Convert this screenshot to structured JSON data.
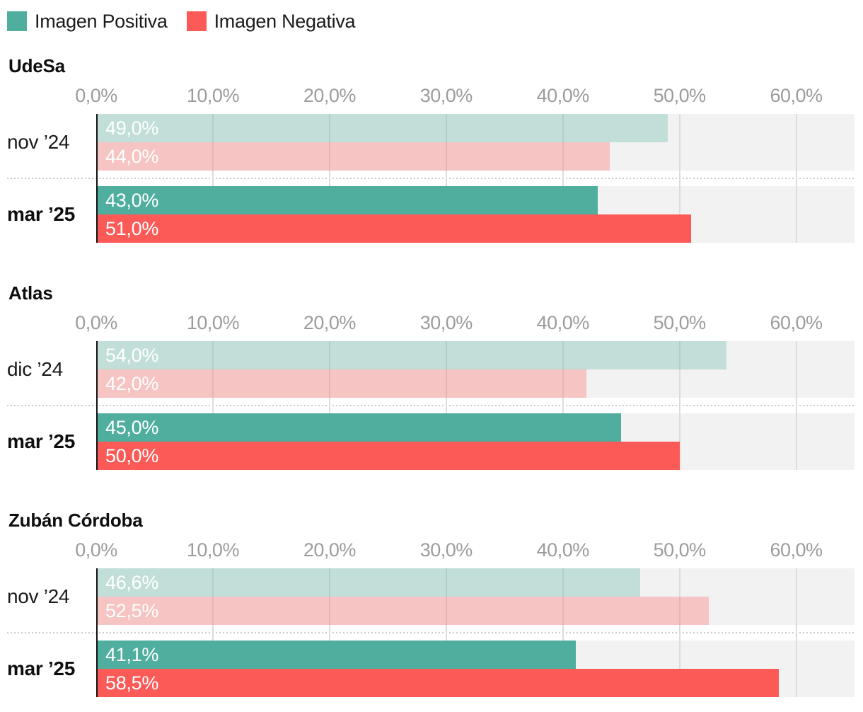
{
  "chart_data": {
    "type": "bar",
    "orientation": "horizontal",
    "unit": "percent",
    "xlim": [
      0,
      65
    ],
    "x_tick_values": [
      0,
      10,
      20,
      30,
      40,
      50,
      60
    ],
    "x_tick_labels": [
      "0,0%",
      "10,0%",
      "20,0%",
      "30,0%",
      "40,0%",
      "50,0%",
      "60,0%"
    ],
    "grid": "vertical",
    "legend_position": "top-left",
    "legend": [
      {
        "label": "Imagen Positiva",
        "color": "#4fae9e"
      },
      {
        "label": "Imagen Negativa",
        "color": "#fb5a57"
      }
    ],
    "colors": {
      "positive": "#4fae9e",
      "negative": "#fb5a57",
      "positive_muted": "rgba(79, 174, 158, 0.3)",
      "negative_muted": "rgba(251, 90, 87, 0.3)",
      "plot_background": "#f2f2f2",
      "gridline": "#dcdcdc",
      "axis_line": "#111111",
      "tick_label": "#9c9c9c",
      "value_label": "#ffffff"
    },
    "groups": [
      {
        "pollster": "UdeSa",
        "rows": [
          {
            "period": "nov ’24",
            "muted": true,
            "bold": false,
            "positiva": 49.0,
            "negativa": 44.0,
            "positiva_label": "49,0%",
            "negativa_label": "44,0%"
          },
          {
            "period": "mar ’25",
            "muted": false,
            "bold": true,
            "positiva": 43.0,
            "negativa": 51.0,
            "positiva_label": "43,0%",
            "negativa_label": "51,0%"
          }
        ]
      },
      {
        "pollster": "Atlas",
        "rows": [
          {
            "period": "dic ’24",
            "muted": true,
            "bold": false,
            "positiva": 54.0,
            "negativa": 42.0,
            "positiva_label": "54,0%",
            "negativa_label": "42,0%"
          },
          {
            "period": "mar ’25",
            "muted": false,
            "bold": true,
            "positiva": 45.0,
            "negativa": 50.0,
            "positiva_label": "45,0%",
            "negativa_label": "50,0%"
          }
        ]
      },
      {
        "pollster": "Zubán Córdoba",
        "rows": [
          {
            "period": "nov ’24",
            "muted": true,
            "bold": false,
            "positiva": 46.6,
            "negativa": 52.5,
            "positiva_label": "46,6%",
            "negativa_label": "52,5%"
          },
          {
            "period": "mar ’25",
            "muted": false,
            "bold": true,
            "positiva": 41.1,
            "negativa": 58.5,
            "positiva_label": "41,1%",
            "negativa_label": "58,5%"
          }
        ]
      }
    ]
  }
}
